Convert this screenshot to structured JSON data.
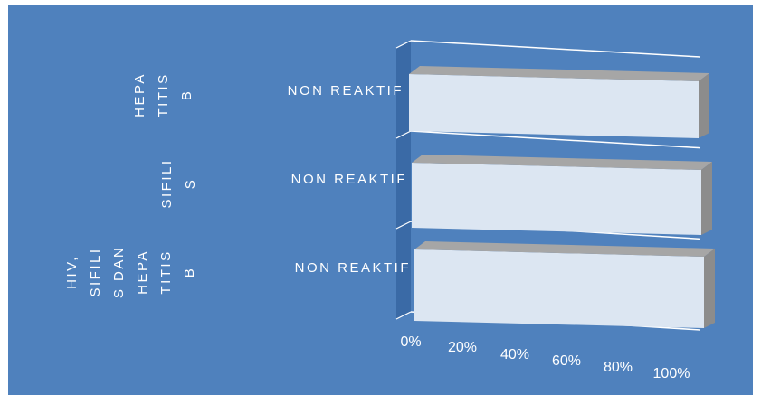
{
  "colors": {
    "background": "#4f81bd",
    "bar_front": "#dce6f2",
    "bar_top": "#a6a6a6",
    "bar_side": "#8c8c8c",
    "wall": "#3a6aa6",
    "line": "#ffffff",
    "text": "#ffffff"
  },
  "chart_data": {
    "type": "bar",
    "orientation": "horizontal",
    "three_d": true,
    "categories_outer": [
      "HEPA TITIS B",
      "SIFILI S",
      "HIV, SIFILI S DAN HEPA TITIS B"
    ],
    "categories_inner": [
      "NON REAKTIF",
      "NON REAKTIF",
      "NON REAKTIF"
    ],
    "values": [
      100,
      100,
      100
    ],
    "xlim": [
      0,
      100
    ],
    "x_ticks": [
      "0%",
      "20%",
      "40%",
      "60%",
      "80%",
      "100%"
    ],
    "grid": true,
    "legend": "none"
  }
}
